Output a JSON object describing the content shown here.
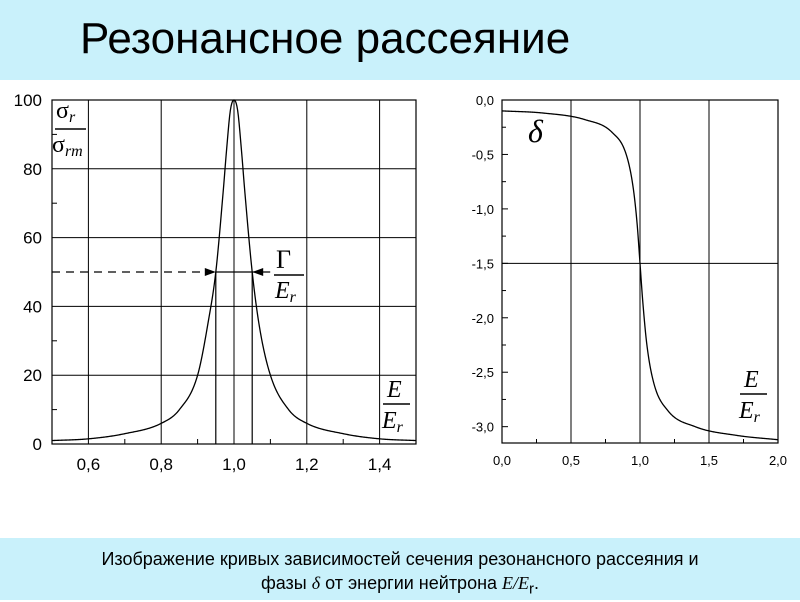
{
  "title": "Резонансное рассеяние",
  "caption": {
    "line1": "Изображение кривых зависимостей сечения  резонансного рассеяния  и",
    "line2_a": "фазы ",
    "line2_delta": "δ",
    "line2_b": " от энергии  нейтрона  ",
    "line2_var": "E/E",
    "line2_sub": "r",
    "line2_end": "."
  },
  "colors": {
    "band": "#c9f1fb",
    "ink": "#000000"
  },
  "chart_data": [
    {
      "type": "line",
      "name": "cross-section",
      "xlim": [
        0.5,
        1.5
      ],
      "ylim": [
        0,
        100
      ],
      "xticks": [
        0.6,
        0.8,
        1.0,
        1.2,
        1.4
      ],
      "xtick_labels": [
        "0,6",
        "0,8",
        "1,0",
        "1,2",
        "1,4"
      ],
      "yticks": [
        0,
        20,
        40,
        60,
        80,
        100
      ],
      "ytick_labels": [
        "0",
        "20",
        "40",
        "60",
        "80",
        "100"
      ],
      "grid": true,
      "x": [
        0.5,
        0.6,
        0.7,
        0.8,
        0.85,
        0.9,
        0.93,
        0.95,
        0.97,
        0.98,
        0.99,
        1.0,
        1.01,
        1.02,
        1.03,
        1.05,
        1.07,
        1.1,
        1.15,
        1.2,
        1.3,
        1.4,
        1.5
      ],
      "y": [
        1,
        1.5,
        3,
        6,
        10,
        20,
        36,
        50,
        73,
        86,
        97,
        100,
        97,
        86,
        73,
        50,
        34,
        20,
        10,
        6,
        3,
        1.5,
        1
      ],
      "ylabel_num": "σ",
      "ylabel_num_sub": "r",
      "ylabel_den": "σ",
      "ylabel_den_sub": "rm",
      "width_label": "Γ",
      "width_label_den": "E",
      "width_label_den_sub": "r",
      "half_width": {
        "y": 50,
        "x_left": 0.95,
        "x_right": 1.05
      },
      "xlabel_num": "E",
      "xlabel_den": "E",
      "xlabel_den_sub": "r"
    },
    {
      "type": "line",
      "name": "phase",
      "xlim": [
        0,
        2.0
      ],
      "ylim": [
        -3.15,
        0
      ],
      "xticks": [
        0,
        0.5,
        1.0,
        1.5,
        2.0
      ],
      "xtick_labels": [
        "0,0",
        "0,5",
        "1,0",
        "1,5",
        "2,0"
      ],
      "yticks": [
        0,
        -0.5,
        -1.0,
        -1.5,
        -2.0,
        -2.5,
        -3.0
      ],
      "ytick_labels": [
        "0,0",
        "-0,5",
        "-1,0",
        "-1,5",
        "-2,0",
        "-2,5",
        "-3,0"
      ],
      "grid_x": [
        0.5,
        1.0,
        1.5
      ],
      "grid_y": [
        -1.5
      ],
      "x": [
        0,
        0.3,
        0.6,
        0.8,
        0.9,
        0.95,
        0.98,
        1.0,
        1.02,
        1.05,
        1.1,
        1.2,
        1.4,
        1.7,
        2.0
      ],
      "y": [
        -0.1,
        -0.12,
        -0.18,
        -0.3,
        -0.5,
        -0.8,
        -1.15,
        -1.5,
        -1.85,
        -2.25,
        -2.6,
        -2.85,
        -3.0,
        -3.08,
        -3.12
      ],
      "label": "δ",
      "xlabel_num": "E",
      "xlabel_den": "E",
      "xlabel_den_sub": "r"
    }
  ]
}
